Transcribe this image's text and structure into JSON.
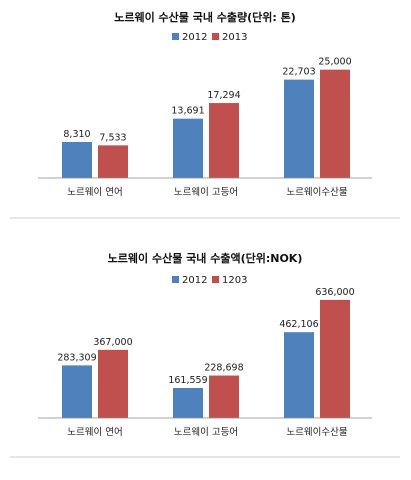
{
  "chart_data": [
    {
      "type": "bar",
      "title": "노르웨이 수산물 국내 수출량(단위: 톤)",
      "categories": [
        "노르웨이 연어",
        "노르웨이 고등어",
        "노르웨이수산물"
      ],
      "series": [
        {
          "name": "2012",
          "values": [
            8310,
            13691,
            22703
          ],
          "labels": [
            "8,310",
            "13,691",
            "22,703"
          ],
          "color": "#4f81bd"
        },
        {
          "name": "2013",
          "values": [
            7533,
            17294,
            25000
          ],
          "labels": [
            "7,533",
            "17,294",
            "25,000"
          ],
          "color": "#c0504d"
        }
      ],
      "ylim": [
        0,
        30000
      ],
      "grid": false,
      "legend": "top-center"
    },
    {
      "type": "bar",
      "title": "노르웨이 수산물 국내 수출액(단위:NOK)",
      "categories": [
        "노르웨이 연어",
        "노르웨이 고등어",
        "노르웨이수산물"
      ],
      "series": [
        {
          "name": "2012",
          "values": [
            283309,
            161559,
            462106
          ],
          "labels": [
            "283,309",
            "161,559",
            "462,106"
          ],
          "color": "#4f81bd"
        },
        {
          "name": "1203",
          "values": [
            367000,
            228698,
            636000
          ],
          "labels": [
            "367,000",
            "228,698",
            "636,000"
          ],
          "color": "#c0504d"
        }
      ],
      "ylim": [
        0,
        700000
      ],
      "grid": false,
      "legend": "top-center"
    }
  ]
}
